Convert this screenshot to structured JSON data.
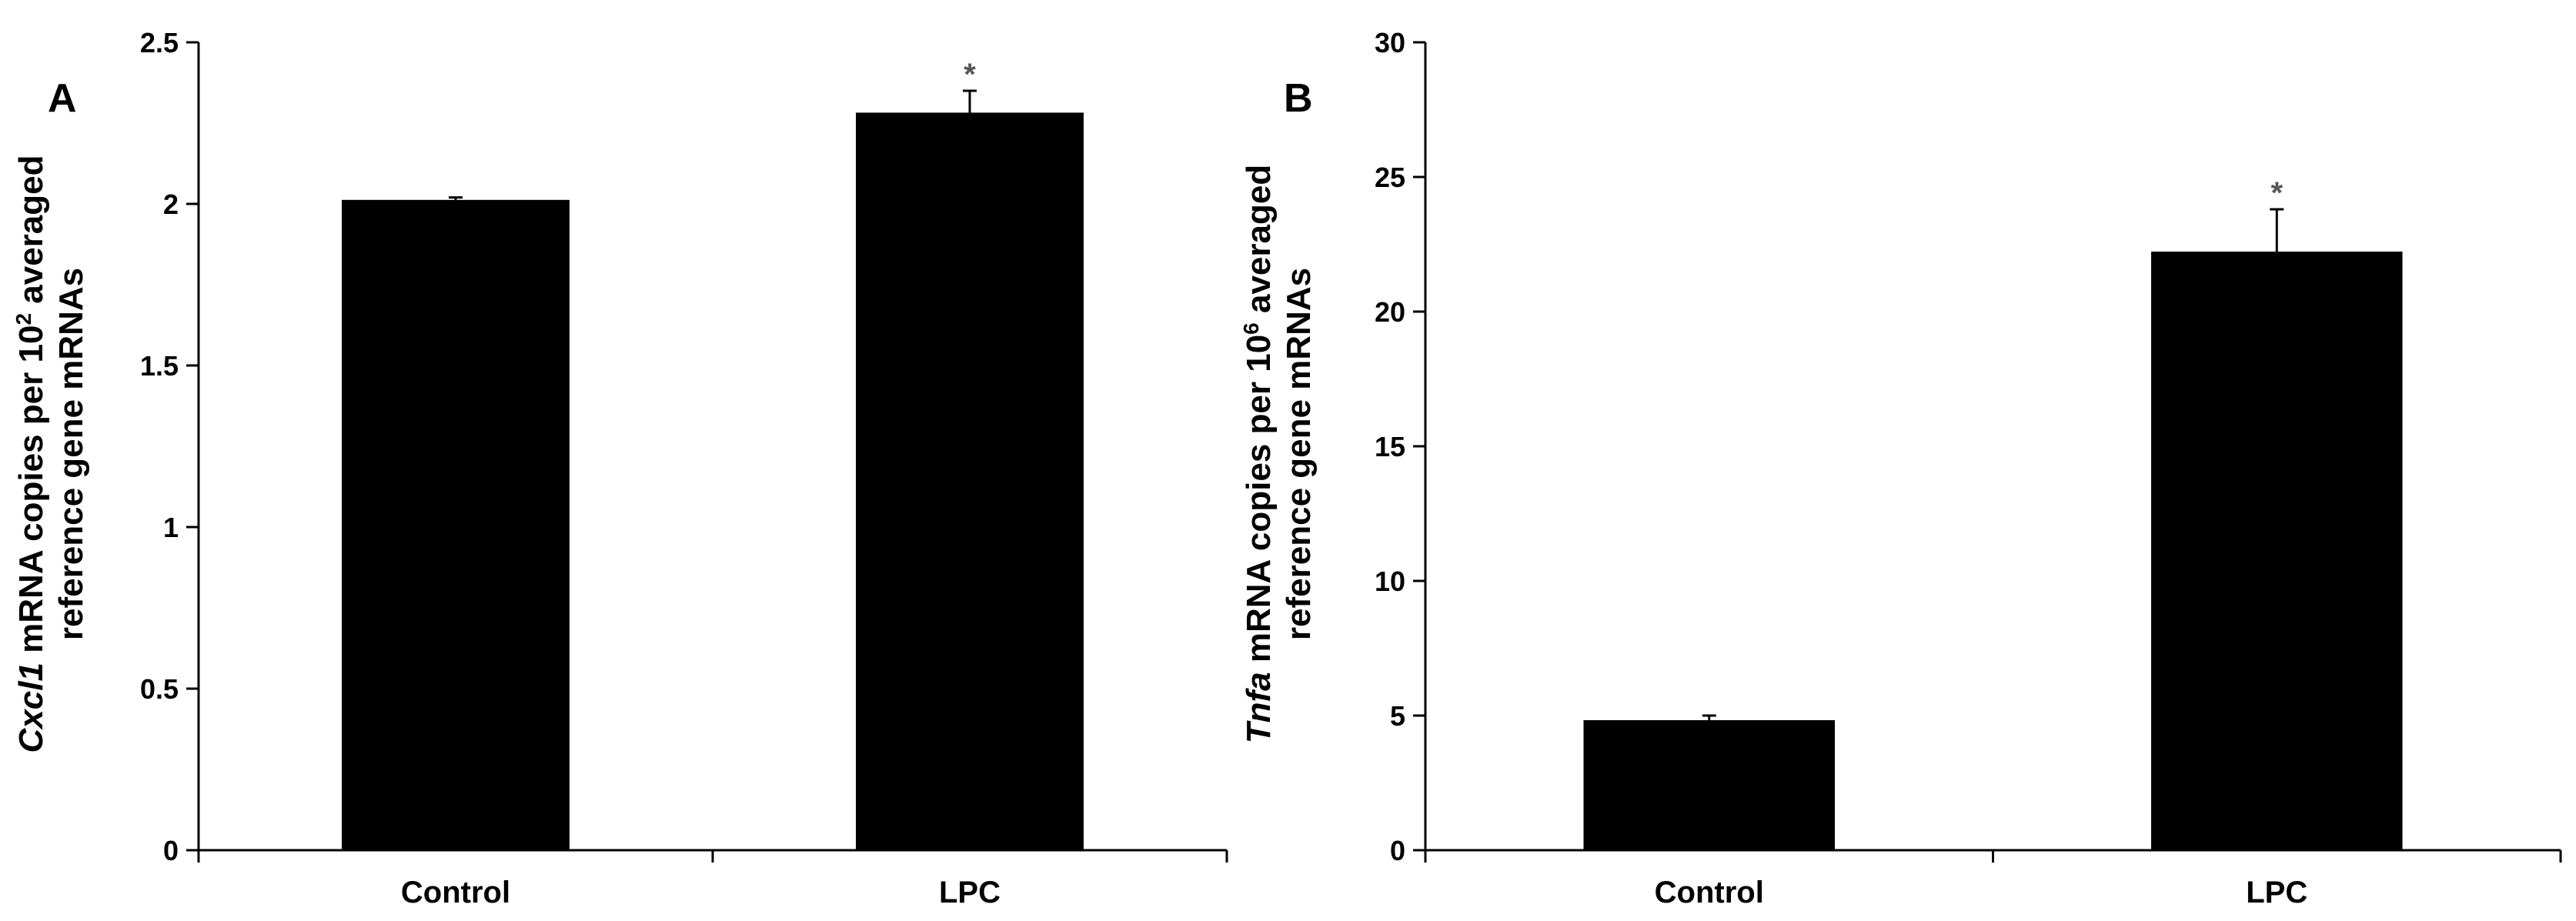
{
  "chart_data": [
    {
      "type": "bar",
      "panel": "A",
      "categories": [
        "Control",
        "LPC"
      ],
      "values": [
        2.01,
        2.28
      ],
      "errors": [
        0.01,
        0.07
      ],
      "significance": [
        "",
        "*"
      ],
      "ylabel": {
        "gene": "Cxcl1",
        "line1_rest": " mRNA copies per 10",
        "exponent": "2",
        "line1_end": " averaged",
        "line2": "reference gene mRNAs"
      },
      "ylim": [
        0,
        2.5
      ],
      "yticks": [
        "0",
        "0.5",
        "1",
        "1.5",
        "2",
        "2.5"
      ],
      "grid": false,
      "bar_color": "#000000"
    },
    {
      "type": "bar",
      "panel": "B",
      "categories": [
        "Control",
        "LPC"
      ],
      "values": [
        4.8,
        22.2
      ],
      "errors": [
        0.2,
        1.6
      ],
      "significance": [
        "",
        "*"
      ],
      "ylabel": {
        "gene": "Tnfa",
        "line1_rest": " mRNA copies per 10",
        "exponent": "6",
        "line1_end": " averaged",
        "line2": "reference gene mRNAs"
      },
      "ylim": [
        0,
        30
      ],
      "yticks": [
        "0",
        "5",
        "10",
        "15",
        "20",
        "25",
        "30"
      ],
      "grid": false,
      "bar_color": "#000000"
    }
  ]
}
